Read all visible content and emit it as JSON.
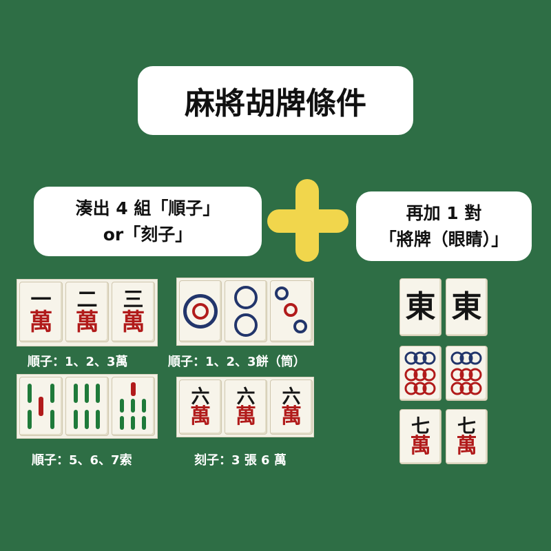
{
  "title": "麻將胡牌條件",
  "left_box": {
    "line1": "湊出 4 組「順子」",
    "line2": "or「刻子」"
  },
  "right_box": {
    "line1": "再加 1 對",
    "line2": "「將牌（眼睛）」"
  },
  "captions": {
    "wan_run": "順子：1、2、3萬",
    "pin_run": "順子：1、2、3餅（筒）",
    "sou_run": "順子：5、6、7索",
    "triplet": "刻子：3 張 6 萬"
  },
  "tiles": {
    "wan_run": [
      {
        "top": "一",
        "bottom": "萬"
      },
      {
        "top": "二",
        "bottom": "萬"
      },
      {
        "top": "三",
        "bottom": "萬"
      }
    ],
    "triplet": [
      {
        "top": "六",
        "bottom": "萬"
      },
      {
        "top": "六",
        "bottom": "萬"
      },
      {
        "top": "六",
        "bottom": "萬"
      }
    ],
    "pair_east": [
      {
        "char": "東"
      },
      {
        "char": "東"
      }
    ],
    "pair_seven": [
      {
        "top": "七",
        "bottom": "萬"
      },
      {
        "top": "七",
        "bottom": "萬"
      }
    ]
  },
  "colors": {
    "background": "#2e6e45",
    "plus": "#f1d64c",
    "tile_red": "#b11b1b",
    "pin_blue": "#22356b",
    "sou_green": "#1f7a3a"
  }
}
